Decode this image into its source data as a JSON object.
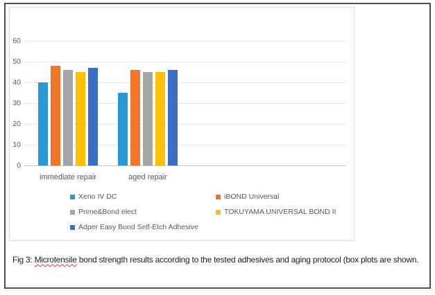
{
  "figure": {
    "caption_prefix": "Fig 3: ",
    "caption_misspelled_word": "Microtensile",
    "caption_rest": " bond strength results according to the tested adhesives and aging protocol (box plots are shown."
  },
  "chart_data": {
    "type": "bar",
    "categories": [
      "immediate repair",
      "aged repair"
    ],
    "series": [
      {
        "name": "Xeno IV DC",
        "values": [
          40,
          35
        ],
        "color": "#2899D5"
      },
      {
        "name": "iBOND Universal",
        "values": [
          48,
          46
        ],
        "color": "#F2762A"
      },
      {
        "name": "Prime&Bond elect",
        "values": [
          46,
          45
        ],
        "color": "#A5A5A5"
      },
      {
        "name": "TOKUYAMA UNIVERSAL BOND II",
        "values": [
          45,
          45
        ],
        "color": "#FFC000"
      },
      {
        "name": "Adper Easy Bond Self-Etch Adhesive",
        "values": [
          47,
          46
        ],
        "color": "#3A6FC5"
      }
    ],
    "title": "",
    "xlabel": "",
    "ylabel": "",
    "ylim": [
      0,
      60
    ],
    "yticks": [
      0,
      10,
      20,
      30,
      40,
      50,
      60
    ],
    "grid": true,
    "legend_position": "bottom",
    "axis_text_color": "#595959",
    "gridline_color": "#E4E4E4"
  }
}
